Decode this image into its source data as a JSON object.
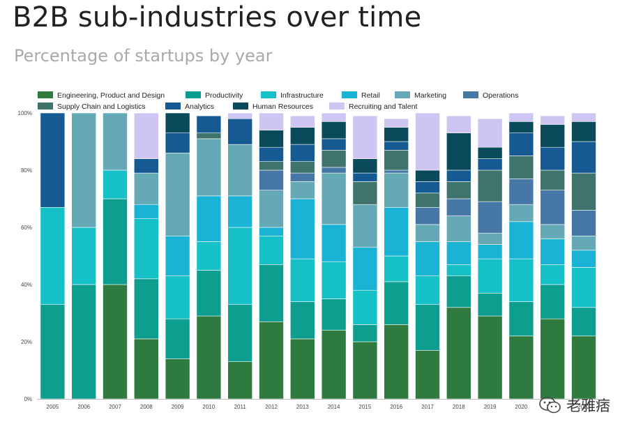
{
  "title": "B2B sub-industries over time",
  "subtitle": "Percentage of startups by year",
  "watermark": {
    "text": "老雅痞",
    "icon": "wechat-icon"
  },
  "chart_data": {
    "type": "bar",
    "stacked": true,
    "categories": [
      "2005",
      "2006",
      "2007",
      "2008",
      "2009",
      "2010",
      "2011",
      "2012",
      "2013",
      "2014",
      "2015",
      "2016",
      "2017",
      "2018",
      "2019",
      "2020",
      "2021",
      "2022"
    ],
    "ylim": [
      0,
      100
    ],
    "yticks": [
      "0%",
      "20%",
      "40%",
      "60%",
      "80%",
      "100%"
    ],
    "grid": false,
    "legend_position": "top",
    "series": [
      {
        "name": "Engineering, Product and Design",
        "color": "#2f7a3e",
        "values": [
          0,
          0,
          40,
          21,
          14,
          29,
          13,
          27,
          21,
          24,
          20,
          26,
          17,
          32,
          29,
          22,
          28,
          22
        ]
      },
      {
        "name": "Productivity",
        "color": "#0e9e8f",
        "values": [
          33,
          40,
          30,
          21,
          14,
          16,
          20,
          20,
          13,
          11,
          6,
          15,
          16,
          11,
          8,
          12,
          12,
          10
        ]
      },
      {
        "name": "Infrastructure",
        "color": "#15c0c6",
        "values": [
          34,
          20,
          10,
          21,
          15,
          10,
          27,
          10,
          15,
          13,
          12,
          9,
          10,
          4,
          12,
          15,
          7,
          14
        ]
      },
      {
        "name": "Retail",
        "color": "#1ab3d6",
        "values": [
          0,
          0,
          0,
          5,
          14,
          16,
          11,
          3,
          21,
          13,
          15,
          17,
          12,
          8,
          5,
          13,
          9,
          6
        ]
      },
      {
        "name": "Marketing",
        "color": "#64a9b5",
        "values": [
          0,
          40,
          20,
          11,
          29,
          20,
          18,
          13,
          6,
          18,
          15,
          12,
          6,
          9,
          4,
          6,
          5,
          5
        ]
      },
      {
        "name": "Operations",
        "color": "#4677a6",
        "values": [
          0,
          0,
          0,
          0,
          0,
          0,
          0,
          7,
          3,
          2,
          0,
          1,
          6,
          6,
          11,
          9,
          12,
          9
        ]
      },
      {
        "name": "Supply Chain and Logistics",
        "color": "#3f746c",
        "values": [
          0,
          0,
          0,
          0,
          0,
          2,
          0,
          3,
          4,
          6,
          8,
          7,
          5,
          6,
          11,
          8,
          7,
          13
        ]
      },
      {
        "name": "Analytics",
        "color": "#155a93",
        "values": [
          33,
          0,
          0,
          5,
          7,
          6,
          9,
          5,
          6,
          4,
          3,
          3,
          4,
          4,
          4,
          8,
          8,
          11
        ]
      },
      {
        "name": "Human Resources",
        "color": "#0b4a5a",
        "values": [
          0,
          0,
          0,
          0,
          7,
          0,
          0,
          6,
          6,
          6,
          5,
          5,
          4,
          13,
          4,
          4,
          8,
          7
        ]
      },
      {
        "name": "Recruiting and Talent",
        "color": "#cfc5f2",
        "values": [
          0,
          0,
          0,
          16,
          0,
          0,
          2,
          6,
          4,
          3,
          15,
          3,
          20,
          6,
          10,
          3,
          3,
          3
        ]
      }
    ]
  }
}
